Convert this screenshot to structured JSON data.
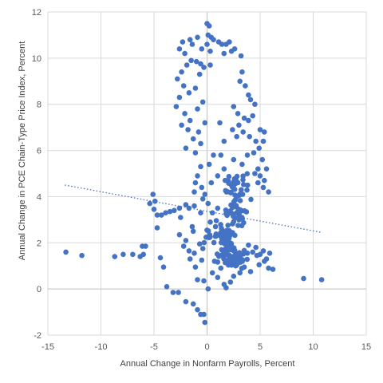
{
  "chart_data": {
    "type": "scatter",
    "title": "",
    "xlabel": "Annual Change in Nonfarm Payrolls, Percent",
    "ylabel": "Annual Change in PCE Chain-Type Price Index, Percent",
    "xlim": [
      -15,
      15
    ],
    "ylim": [
      -2,
      12
    ],
    "x_ticks": [
      -15,
      -10,
      -5,
      0,
      5,
      10,
      15
    ],
    "y_ticks": [
      -2,
      0,
      2,
      4,
      6,
      8,
      10,
      12
    ],
    "grid": true,
    "legend": "none",
    "marker_color": "#4472C4",
    "trendline": {
      "type": "linear",
      "x": [
        -13.4,
        10.8
      ],
      "y": [
        4.5,
        2.45
      ],
      "style": "dotted",
      "color": "#4472C4"
    },
    "clusters": [
      {
        "n": 60,
        "center": [
          1.8,
          2.1
        ],
        "spread": [
          0.6,
          0.5
        ]
      },
      {
        "n": 45,
        "center": [
          2.4,
          1.35
        ],
        "spread": [
          1.1,
          0.3
        ]
      },
      {
        "n": 38,
        "center": [
          2.6,
          3.3
        ],
        "spread": [
          1.1,
          0.55
        ]
      },
      {
        "n": 34,
        "center": [
          3.0,
          4.4
        ],
        "spread": [
          1.2,
          0.4
        ]
      },
      {
        "n": 10,
        "center": [
          0.2,
          2.3
        ],
        "spread": [
          0.5,
          0.3
        ]
      }
    ],
    "points": [
      [
        -13.3,
        1.6
      ],
      [
        -11.8,
        1.45
      ],
      [
        -8.7,
        1.4
      ],
      [
        -7.9,
        1.5
      ],
      [
        -7.0,
        1.5
      ],
      [
        -6.3,
        1.4
      ],
      [
        -6.0,
        1.5
      ],
      [
        -6.1,
        1.85
      ],
      [
        -5.8,
        1.85
      ],
      [
        -5.4,
        3.7
      ],
      [
        -5.1,
        4.1
      ],
      [
        -4.9,
        3.8
      ],
      [
        -5.0,
        3.45
      ],
      [
        -4.7,
        3.2
      ],
      [
        -4.3,
        3.2
      ],
      [
        -3.9,
        3.3
      ],
      [
        -3.5,
        3.35
      ],
      [
        -3.1,
        3.4
      ],
      [
        -2.6,
        3.5
      ],
      [
        -2.0,
        3.65
      ],
      [
        -2.5,
        3.1
      ],
      [
        -1.7,
        3.5
      ],
      [
        -1.2,
        3.6
      ],
      [
        -1.4,
        2.7
      ],
      [
        -2.0,
        2.1
      ],
      [
        -1.3,
        2.5
      ],
      [
        -4.7,
        2.65
      ],
      [
        -4.4,
        1.35
      ],
      [
        -4.1,
        0.95
      ],
      [
        -3.8,
        0.1
      ],
      [
        -3.2,
        -0.15
      ],
      [
        -2.7,
        -0.15
      ],
      [
        -2.0,
        -0.55
      ],
      [
        -1.3,
        -0.65
      ],
      [
        -0.9,
        -0.9
      ],
      [
        -0.6,
        -1.1
      ],
      [
        -0.3,
        -1.1
      ],
      [
        -0.2,
        -1.45
      ],
      [
        -0.9,
        0.4
      ],
      [
        -0.3,
        0.35
      ],
      [
        0.1,
        0.0
      ],
      [
        -1.1,
        0.95
      ],
      [
        -0.5,
        1.25
      ],
      [
        -2.2,
        1.85
      ],
      [
        -2.6,
        2.35
      ],
      [
        -1.7,
        1.65
      ],
      [
        -1.2,
        1.55
      ],
      [
        -0.7,
        1.95
      ],
      [
        -0.4,
        1.75
      ],
      [
        -1.6,
        1.3
      ],
      [
        0.0,
        11.5
      ],
      [
        0.2,
        11.4
      ],
      [
        0.1,
        11.0
      ],
      [
        0.4,
        10.9
      ],
      [
        0.0,
        10.6
      ],
      [
        0.3,
        10.3
      ],
      [
        -0.5,
        10.4
      ],
      [
        -0.9,
        10.9
      ],
      [
        -1.4,
        10.6
      ],
      [
        -1.6,
        10.8
      ],
      [
        -2.3,
        10.7
      ],
      [
        -2.6,
        10.4
      ],
      [
        -2.1,
        10.2
      ],
      [
        -1.5,
        9.9
      ],
      [
        -1.0,
        9.85
      ],
      [
        -0.6,
        9.75
      ],
      [
        -1.9,
        9.7
      ],
      [
        -2.4,
        9.4
      ],
      [
        -2.8,
        9.1
      ],
      [
        -2.2,
        8.8
      ],
      [
        -1.7,
        8.5
      ],
      [
        -1.1,
        8.7
      ],
      [
        -0.7,
        9.3
      ],
      [
        -0.3,
        9.6
      ],
      [
        -2.6,
        8.3
      ],
      [
        -2.9,
        7.9
      ],
      [
        -2.1,
        7.6
      ],
      [
        -1.6,
        7.3
      ],
      [
        -0.9,
        7.8
      ],
      [
        -0.4,
        8.1
      ],
      [
        -2.4,
        7.1
      ],
      [
        -1.8,
        6.9
      ],
      [
        -1.3,
        6.5
      ],
      [
        -0.8,
        6.8
      ],
      [
        -2.0,
        6.1
      ],
      [
        -1.1,
        5.9
      ],
      [
        -0.6,
        6.3
      ],
      [
        -0.2,
        7.2
      ],
      [
        0.3,
        9.7
      ],
      [
        0.6,
        10.8
      ],
      [
        1.1,
        10.7
      ],
      [
        1.4,
        10.6
      ],
      [
        1.8,
        10.6
      ],
      [
        2.1,
        10.7
      ],
      [
        2.6,
        10.4
      ],
      [
        3.2,
        10.1
      ],
      [
        2.3,
        10.3
      ],
      [
        1.6,
        10.2
      ],
      [
        3.3,
        9.4
      ],
      [
        3.1,
        9.0
      ],
      [
        3.6,
        8.8
      ],
      [
        3.9,
        8.4
      ],
      [
        4.1,
        8.2
      ],
      [
        4.5,
        8.0
      ],
      [
        4.3,
        7.5
      ],
      [
        3.9,
        7.3
      ],
      [
        3.5,
        7.4
      ],
      [
        2.9,
        7.6
      ],
      [
        2.5,
        7.9
      ],
      [
        3.0,
        7.1
      ],
      [
        2.4,
        6.9
      ],
      [
        2.8,
        6.6
      ],
      [
        3.4,
        6.8
      ],
      [
        4.0,
        6.6
      ],
      [
        4.6,
        6.4
      ],
      [
        5.0,
        6.9
      ],
      [
        5.4,
        6.8
      ],
      [
        5.3,
        6.4
      ],
      [
        4.9,
        6.1
      ],
      [
        5.2,
        5.6
      ],
      [
        4.8,
        5.2
      ],
      [
        5.6,
        5.2
      ],
      [
        4.5,
        5.0
      ],
      [
        5.0,
        4.9
      ],
      [
        5.4,
        4.7
      ],
      [
        5.3,
        4.4
      ],
      [
        4.8,
        4.6
      ],
      [
        5.8,
        4.2
      ],
      [
        1.2,
        7.2
      ],
      [
        1.6,
        6.4
      ],
      [
        1.3,
        5.8
      ],
      [
        0.6,
        5.8
      ],
      [
        0.2,
        5.4
      ],
      [
        -0.6,
        5.3
      ],
      [
        -0.9,
        4.9
      ],
      [
        -1.1,
        4.6
      ],
      [
        -1.2,
        4.2
      ],
      [
        -0.5,
        4.4
      ],
      [
        -0.2,
        4.1
      ],
      [
        0.4,
        4.6
      ],
      [
        1.0,
        4.9
      ],
      [
        1.6,
        5.2
      ],
      [
        2.5,
        5.6
      ],
      [
        3.3,
        5.4
      ],
      [
        3.8,
        5.8
      ],
      [
        4.4,
        5.9
      ],
      [
        -0.4,
        3.9
      ],
      [
        0.1,
        3.7
      ],
      [
        0.5,
        3.3
      ],
      [
        1.0,
        3.5
      ],
      [
        -0.6,
        3.3
      ],
      [
        0.3,
        2.9
      ],
      [
        0.8,
        2.7
      ],
      [
        3.8,
        1.55
      ],
      [
        4.3,
        1.6
      ],
      [
        4.7,
        1.45
      ],
      [
        5.0,
        1.5
      ],
      [
        5.3,
        1.65
      ],
      [
        5.6,
        1.3
      ],
      [
        5.9,
        1.55
      ],
      [
        5.4,
        1.2
      ],
      [
        4.9,
        1.05
      ],
      [
        5.8,
        0.9
      ],
      [
        6.2,
        0.85
      ],
      [
        4.6,
        1.8
      ],
      [
        3.9,
        1.9
      ],
      [
        9.1,
        0.45
      ],
      [
        10.8,
        0.4
      ],
      [
        1.0,
        0.5
      ],
      [
        1.6,
        0.2
      ],
      [
        2.2,
        0.3
      ],
      [
        1.8,
        0.05
      ],
      [
        2.5,
        0.55
      ],
      [
        3.1,
        0.7
      ],
      [
        3.5,
        0.95
      ],
      [
        4.1,
        0.75
      ],
      [
        1.3,
        0.9
      ],
      [
        2.7,
        1.0
      ],
      [
        0.7,
        1.2
      ],
      [
        0.5,
        0.7
      ]
    ]
  }
}
